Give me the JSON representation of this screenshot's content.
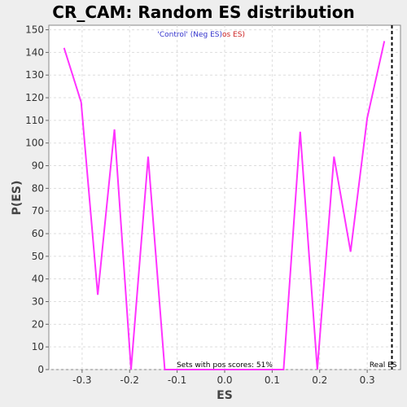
{
  "chart_data": {
    "type": "line",
    "title": "CR_CAM: Random ES distribution",
    "xlabel": "ES",
    "ylabel": "P(ES)",
    "xlim": [
      -0.37,
      0.37
    ],
    "ylim": [
      0,
      152
    ],
    "xticks": [
      -0.3,
      -0.2,
      -0.1,
      0.0,
      0.1,
      0.2,
      0.3
    ],
    "xtick_labels": [
      "-0.3",
      "-0.2",
      "-0.1",
      "0.0",
      "0.1",
      "0.2",
      "0.3"
    ],
    "yticks": [
      0,
      10,
      20,
      30,
      40,
      50,
      60,
      70,
      80,
      90,
      100,
      110,
      120,
      130,
      140,
      150
    ],
    "grid": true,
    "legend": {
      "placement": "top-center",
      "part1": "'Control' (Neg ES)",
      "part2": "os ES)",
      "part1_color": "#3333cc",
      "part2_color": "#cc2222"
    },
    "series": [
      {
        "color": "#ff33ff",
        "x": [
          -0.338,
          -0.302,
          -0.267,
          -0.232,
          -0.197,
          -0.161,
          -0.126,
          0.124,
          0.159,
          0.195,
          0.23,
          0.265,
          0.3,
          0.336
        ],
        "y": [
          142,
          118,
          33,
          106,
          0,
          94,
          0,
          0,
          105,
          0,
          94,
          52,
          111,
          145
        ]
      }
    ],
    "real_es": {
      "x": 0.352,
      "label": "Real ES"
    },
    "annotation": "Sets with pos scores: 51%"
  }
}
